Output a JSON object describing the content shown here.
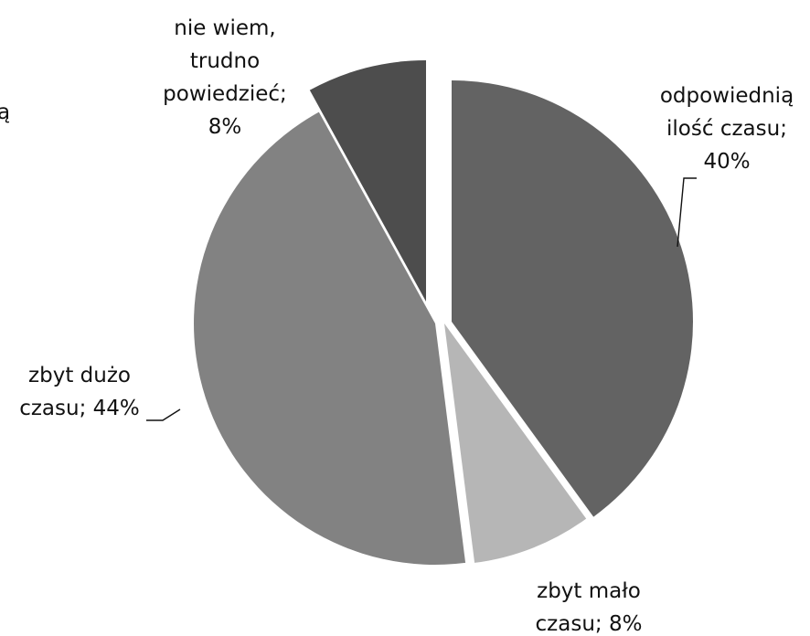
{
  "chart_data": {
    "type": "pie",
    "title": "",
    "exploded": true,
    "start_angle_deg": 0,
    "direction": "clockwise",
    "legend": "none",
    "slices": [
      {
        "label_lines": [
          "odpowiednią",
          "ilość czasu;",
          "40%"
        ],
        "value": 40,
        "color": "#636363"
      },
      {
        "label_lines": [
          "zbyt mało",
          "czasu; 8%"
        ],
        "value": 8,
        "color": "#b6b6b6"
      },
      {
        "label_lines": [
          "zbyt dużo",
          "czasu; 44%"
        ],
        "value": 44,
        "color": "#828282"
      },
      {
        "label_lines": [
          "nie wiem,",
          "trudno",
          "powiedzieć;",
          "8%"
        ],
        "value": 8,
        "color": "#4d4d4d"
      }
    ],
    "truncated_left_text": "ą"
  }
}
